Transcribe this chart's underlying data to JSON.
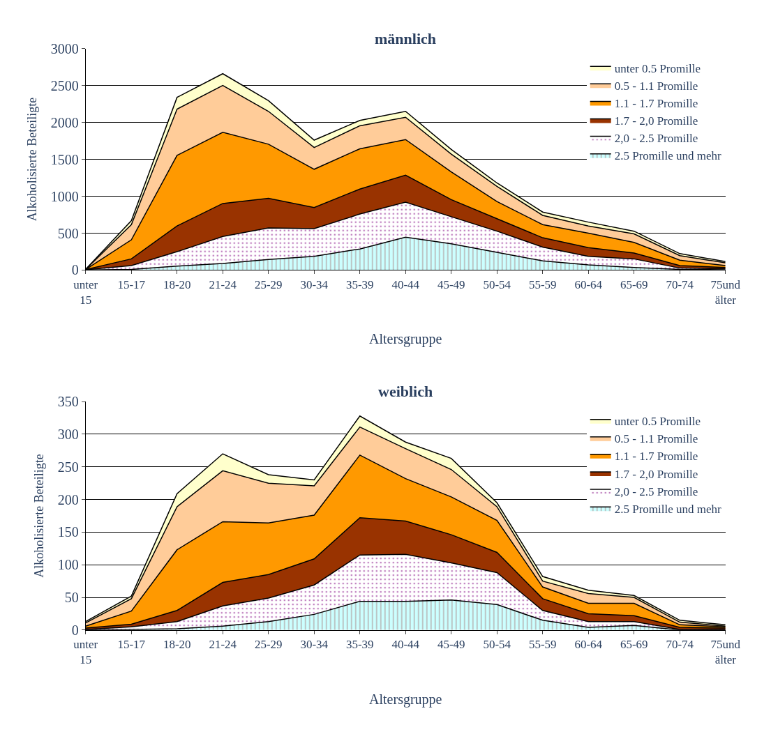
{
  "chart_data": [
    {
      "type": "area",
      "stacked": true,
      "title": "männlich",
      "xlabel": "Altersgruppe",
      "ylabel": "Alkoholisierte Beteiligte",
      "categories": [
        "unter 15",
        "15-17",
        "18-20",
        "21-24",
        "25-29",
        "30-34",
        "35-39",
        "40-44",
        "45-49",
        "50-54",
        "55-59",
        "60-64",
        "65-69",
        "70-74",
        "75und älter"
      ],
      "series": [
        {
          "name": "2.5 Promille und mehr",
          "color": "#ccffff",
          "values": [
            2,
            10,
            54,
            89,
            143,
            187,
            286,
            446,
            357,
            241,
            125,
            71,
            36,
            9,
            5
          ]
        },
        {
          "name": "2,0 - 2.5 Promille",
          "color": "#ffffff",
          "values": [
            2,
            52,
            196,
            366,
            428,
            375,
            473,
            474,
            366,
            286,
            187,
            116,
            116,
            18,
            13
          ]
        },
        {
          "name": "1.7 - 2,0 Promille",
          "color": "#993300",
          "values": [
            2,
            90,
            348,
            447,
            402,
            286,
            339,
            366,
            232,
            169,
            126,
            117,
            80,
            35,
            18
          ]
        },
        {
          "name": "1.1 - 1.7 Promille",
          "color": "#ff9900",
          "values": [
            2,
            258,
            956,
            964,
            732,
            518,
            545,
            482,
            375,
            233,
            178,
            196,
            143,
            72,
            26
          ]
        },
        {
          "name": "0.5 - 1.1 Promille",
          "color": "#ffcc99",
          "values": [
            2,
            206,
            626,
            634,
            445,
            294,
            312,
            302,
            240,
            205,
            125,
            98,
            116,
            62,
            36
          ]
        },
        {
          "name": "unter 0.5 Promille",
          "color": "#ffffcc",
          "values": [
            2,
            54,
            160,
            160,
            145,
            100,
            72,
            80,
            64,
            46,
            45,
            52,
            36,
            27,
            18
          ]
        }
      ],
      "ylim": [
        0,
        3000
      ],
      "yticks": [
        0,
        500,
        1000,
        1500,
        2000,
        2500,
        3000
      ],
      "grid": "y",
      "legend": "top right"
    },
    {
      "type": "area",
      "stacked": true,
      "title": "weiblich",
      "xlabel": "Altersgruppe",
      "ylabel": "Alkoholisierte Beteiligte",
      "categories": [
        "unter 15",
        "15-17",
        "18-20",
        "21-24",
        "25-29",
        "30-34",
        "35-39",
        "40-44",
        "45-49",
        "50-54",
        "55-59",
        "60-64",
        "65-69",
        "70-74",
        "75und älter"
      ],
      "series": [
        {
          "name": "2.5 Promille und mehr",
          "color": "#ccffff",
          "values": [
            0,
            1,
            2,
            6,
            13,
            24,
            44,
            44,
            46,
            39,
            15,
            4,
            7,
            0,
            0
          ]
        },
        {
          "name": "2,0 - 2.5 Promille",
          "color": "#ffffff",
          "values": [
            1,
            4,
            11,
            31,
            36,
            45,
            71,
            72,
            57,
            49,
            15,
            9,
            6,
            1,
            1
          ]
        },
        {
          "name": "1.7 - 2,0 Promille",
          "color": "#993300",
          "values": [
            2,
            4,
            17,
            36,
            36,
            40,
            57,
            51,
            43,
            31,
            18,
            12,
            9,
            3,
            2
          ]
        },
        {
          "name": "1.1 - 1.7 Promille",
          "color": "#ff9900",
          "values": [
            3,
            20,
            93,
            93,
            79,
            67,
            96,
            65,
            58,
            49,
            18,
            16,
            19,
            4,
            2
          ]
        },
        {
          "name": "0.5 - 1.1 Promille",
          "color": "#ffcc99",
          "values": [
            5,
            19,
            66,
            78,
            61,
            45,
            43,
            46,
            42,
            21,
            9,
            15,
            9,
            4,
            1
          ]
        },
        {
          "name": "unter 0.5 Promille",
          "color": "#ffffcc",
          "values": [
            2,
            4,
            20,
            26,
            13,
            9,
            17,
            10,
            17,
            6,
            7,
            5,
            3,
            3,
            2
          ]
        }
      ],
      "ylim": [
        0,
        350
      ],
      "yticks": [
        0,
        50,
        100,
        150,
        200,
        250,
        300,
        350
      ],
      "grid": "y",
      "legend": "top right"
    }
  ]
}
